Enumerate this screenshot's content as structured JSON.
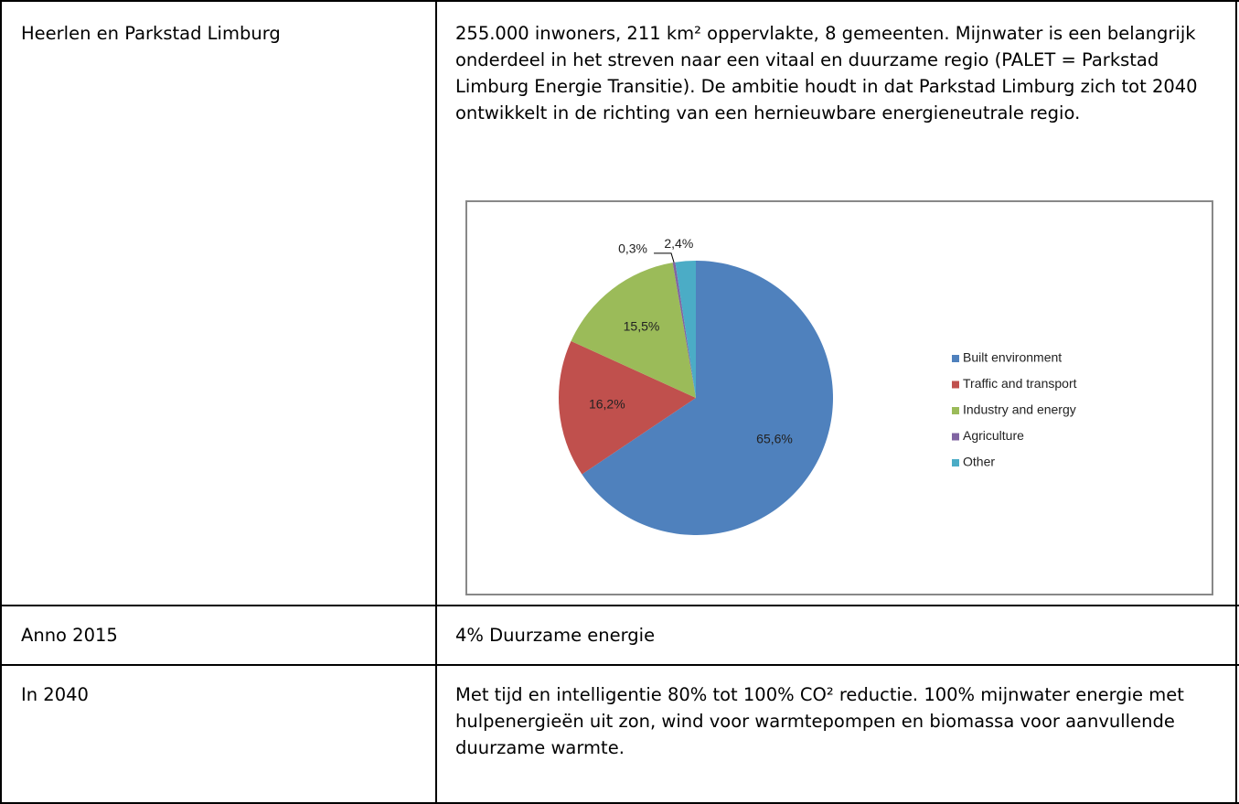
{
  "table": {
    "rows": [
      [
        "Heerlen en Parkstad Limburg",
        "255.000 inwoners, 211 km² oppervlakte, 8 gemeenten. Mijnwater is een belangrijk onderdeel in het streven naar een vitaal en duurzame regio (PALET = Parkstad Limburg Energie Transitie). De ambitie houdt in dat Parkstad Limburg zich tot 2040 ontwikkelt in de richting van een hernieuwbare energieneutrale regio."
      ],
      [
        "Anno 2015",
        "4% Duurzame energie"
      ],
      [
        "In 2040",
        "Met tijd en intelligentie 80% tot 100% CO² reductie. 100% mijnwater energie met hulpenergieën uit zon, wind voor warmtepompen en biomassa voor aanvullende duurzame warmte."
      ]
    ]
  },
  "chart_data": {
    "type": "pie",
    "categories": [
      "Built environment",
      "Traffic and transport",
      "Industry and energy",
      "Agriculture",
      "Other"
    ],
    "values": [
      65.6,
      16.2,
      15.5,
      0.3,
      2.4
    ],
    "value_labels": [
      "65,6%",
      "16,2%",
      "15,5%",
      "0,3%",
      "2,4%"
    ],
    "colors": [
      "#4f81bd",
      "#c0504d",
      "#9bbb59",
      "#8064a2",
      "#4bacc6"
    ],
    "legend": "right"
  }
}
